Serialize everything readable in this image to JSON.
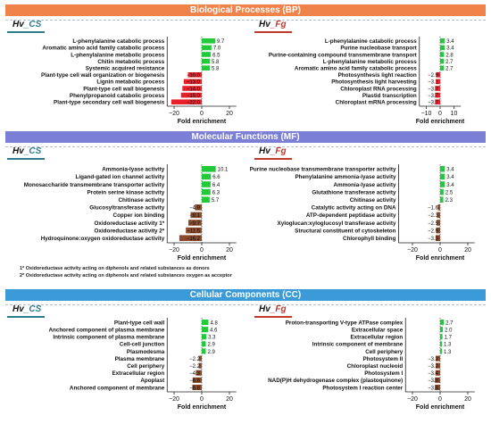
{
  "sections": {
    "bp": "Biological Processes (BP)",
    "mf": "Molecular Functions (MF)",
    "cc": "Cellular Components (CC)"
  },
  "panel_titles": {
    "cs_prefix": "Hv",
    "cs_suffix": "_CS",
    "fg_prefix": "Hv",
    "fg_suffix": "_Fg"
  },
  "footnotes": {
    "note1": "1* Oxidoreductase activity acting on diphenols and related substances as donors",
    "note2": "2* Oxidoreductase activity acting on diphenols and related substances oxygen as acceptor"
  },
  "colors": {
    "positive": "#22c93a",
    "negative_red": "#e8202a",
    "negative_brown": "#8b4a2b"
  },
  "chart_data": [
    {
      "id": "bp_cs",
      "type": "bar",
      "orientation": "horizontal",
      "xlabel": "Fold enrichment",
      "xlim": [
        -25,
        25
      ],
      "xticks": [
        -20,
        0,
        20
      ],
      "categories": [
        "L-phenylalanine catabolic process",
        "Aromatic amino acid family catabolic process",
        "L-phenylalanine metabolic process",
        "Chitin metabolic process",
        "Systemic acquired resistance",
        "Plant-type cell wall organization or biogenesis",
        "Lignin metabolic process",
        "Plant-type cell wall biogenesis",
        "Phenylpropanoid catabolic process",
        "Plant-type secondary cell wall biogenesis"
      ],
      "values": [
        9.7,
        7.0,
        6.5,
        5.8,
        5.8,
        -10.0,
        -13.0,
        -14.0,
        -15.0,
        -22.0
      ],
      "labels": [
        "9.7",
        "7.0",
        "6.5",
        "5.8",
        "5.8",
        "−10.0",
        "−13.0",
        "−14.0",
        "−15.0",
        "−22.0"
      ],
      "neg_color": "red"
    },
    {
      "id": "bp_fg",
      "type": "bar",
      "orientation": "horizontal",
      "xlabel": "Fold enrichment",
      "xlim": [
        -15,
        15
      ],
      "xticks": [
        -10,
        0,
        10
      ],
      "categories": [
        "L-phenylalanine catabolic process",
        "Purine nucleobase transport",
        "Purine-containing compound transmembrane transport",
        "L-phenylalanine metabolic process",
        "Aromatic amino acid family catabolic process",
        "Photosynthesis light reaction",
        "Photosynthesis light harvesting",
        "Chloroplast RNA processing",
        "Plastid transcription",
        "Chloroplast mRNA processing"
      ],
      "values": [
        3.4,
        3.4,
        2.8,
        2.7,
        2.7,
        -2.9,
        -3.1,
        -3.7,
        -3.7,
        -3.7
      ],
      "labels": [
        "3.4",
        "3.4",
        "2.8",
        "2.7",
        "2.7",
        "−2.9",
        "−3.1",
        "−3.7",
        "−3.7",
        "−3.7"
      ],
      "neg_color": "red"
    },
    {
      "id": "mf_cs",
      "type": "bar",
      "orientation": "horizontal",
      "xlabel": "Fold enrichment",
      "xlim": [
        -25,
        25
      ],
      "xticks": [
        -20,
        0,
        20
      ],
      "categories": [
        "Ammonia-lyase activity",
        "Ligand-gated ion channel activity",
        "Monosaccharide transmembrane transporter activity",
        "Protein serine kinase activity",
        "Chitinase activity",
        "Glucosyltransferase activity",
        "Copper ion binding",
        "Oxidoreductase activity 1*",
        "Oxidoreductase activity 2*",
        "Hydroquinone:oxygen oxidoreductase activity"
      ],
      "values": [
        10.1,
        6.6,
        6.4,
        6.3,
        5.7,
        -4.9,
        -8.1,
        -9.7,
        -11.5,
        -16.2
      ],
      "labels": [
        "10.1",
        "6.6",
        "6.4",
        "6.3",
        "5.7",
        "−4.9",
        "−8.1",
        "−9.7",
        "−11.5",
        "−16.2"
      ],
      "neg_color": "brown"
    },
    {
      "id": "mf_fg",
      "type": "bar",
      "orientation": "horizontal",
      "xlabel": "Fold enrichment",
      "xlim": [
        -30,
        25
      ],
      "xticks": [
        -20,
        0,
        20
      ],
      "categories": [
        "Purine nucleobase transmembrane transporter activity",
        "Phenylalanine ammonia-lyase activity",
        "Ammonia-lyase activity",
        "Glutathione transferase activity",
        "Chitinase activity",
        "Catalytic activity acting on DNA",
        "ATP-dependent peptidase activity",
        "Xyloglucan:xyloglucosyl transferase activity",
        "Structural constituent of cytoskeleton",
        "Chlorophyll binding"
      ],
      "values": [
        3.4,
        3.4,
        3.4,
        2.5,
        2.3,
        -1.6,
        -2.3,
        -2.5,
        -2.9,
        -3.3
      ],
      "labels": [
        "3.4",
        "3.4",
        "3.4",
        "2.5",
        "2.3",
        "−1.6",
        "−2.3",
        "−2.5",
        "−2.9",
        "−3.3"
      ],
      "neg_color": "brown"
    },
    {
      "id": "cc_cs",
      "type": "bar",
      "orientation": "horizontal",
      "xlabel": "Fold enrichment",
      "xlim": [
        -25,
        25
      ],
      "xticks": [
        -20,
        0,
        20
      ],
      "categories": [
        "Plant-type cell wall",
        "Anchored component of plasma membrane",
        "Intrinsic component of plasma membrane",
        "Cell-cell junction",
        "Plasmodesma",
        "Plasma membrane",
        "Cell periphery",
        "Extracellular region",
        "Apoplast",
        "Anchored component of membrane"
      ],
      "values": [
        4.8,
        4.6,
        3.3,
        2.9,
        2.9,
        -2.2,
        -2.2,
        -4.3,
        -6.6,
        -6.8
      ],
      "labels": [
        "4.8",
        "4.6",
        "3.3",
        "2.9",
        "2.9",
        "−2.2",
        "−2.2",
        "−4.3",
        "−6.6",
        "−6.8"
      ],
      "neg_color": "brown"
    },
    {
      "id": "cc_fg",
      "type": "bar",
      "orientation": "horizontal",
      "xlabel": "Fold enrichment",
      "xlim": [
        -25,
        25
      ],
      "xticks": [
        -20,
        0,
        20
      ],
      "categories": [
        "Proton-transporting V-type ATPase complex",
        "Extracellular space",
        "Extracellular region",
        "Intrinsic component of membrane",
        "Cell periphery",
        "Photosystem II",
        "Chloroplast nucleoid",
        "Photosystem I",
        "NAD(P)H dehydrogenase complex (plastoquinone)",
        "Photosystem I reaction center"
      ],
      "values": [
        2.7,
        2.0,
        1.7,
        1.3,
        1.3,
        -3.2,
        -3.2,
        -3.4,
        -3.8,
        -3.8
      ],
      "labels": [
        "2.7",
        "2.0",
        "1.7",
        "1.3",
        "1.3",
        "−3.2",
        "−3.2",
        "−3.4",
        "−3.8",
        "−3.8"
      ],
      "neg_color": "brown"
    }
  ]
}
